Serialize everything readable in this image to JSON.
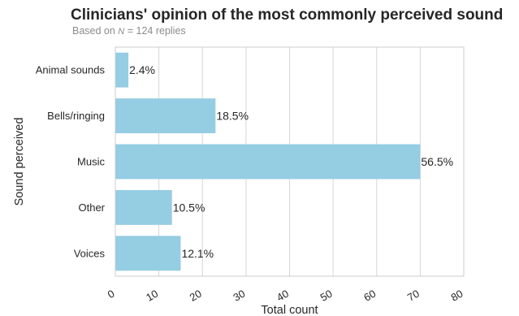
{
  "chart_data": {
    "type": "bar",
    "orientation": "horizontal",
    "title": "Clinicians' opinion of the most commonly perceived sound",
    "subtitle": {
      "prefix": "Based on ",
      "variable": "N",
      "suffix": " = 124 replies"
    },
    "xlabel": "Total count",
    "ylabel": "Sound perceived",
    "categories": [
      "Animal sounds",
      "Bells/ringing",
      "Music",
      "Other",
      "Voices"
    ],
    "values": [
      3,
      23,
      70,
      13,
      15
    ],
    "data_labels": [
      "2.4%",
      "18.5%",
      "56.5%",
      "10.5%",
      "12.1%"
    ],
    "xlim": [
      0,
      80
    ],
    "xticks": [
      "0",
      "10",
      "20",
      "30",
      "40",
      "50",
      "60",
      "70",
      "80"
    ],
    "grid": "vertical",
    "bar_color": "#95cde3",
    "grid_color": "#d6d6d6",
    "frame_color": "#cccccc"
  }
}
